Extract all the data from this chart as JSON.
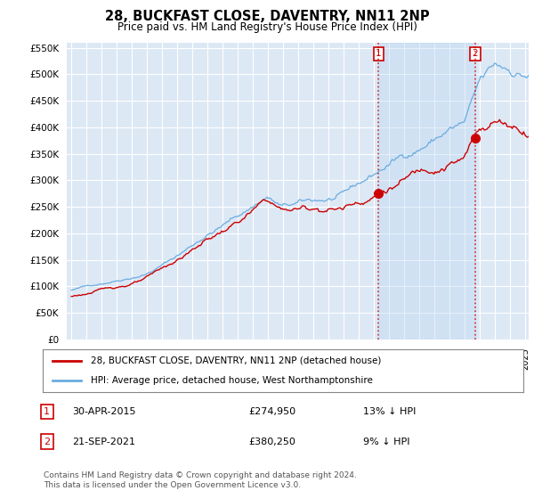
{
  "title": "28, BUCKFAST CLOSE, DAVENTRY, NN11 2NP",
  "subtitle": "Price paid vs. HM Land Registry's House Price Index (HPI)",
  "ylim": [
    0,
    560000
  ],
  "yticks": [
    0,
    50000,
    100000,
    150000,
    200000,
    250000,
    300000,
    350000,
    400000,
    450000,
    500000,
    550000
  ],
  "background_color": "#ffffff",
  "plot_bg_color": "#dde8f5",
  "grid_color": "#ffffff",
  "hpi_color": "#6aace0",
  "price_color": "#cc0000",
  "legend_entry1": "28, BUCKFAST CLOSE, DAVENTRY, NN11 2NP (detached house)",
  "legend_entry2": "HPI: Average price, detached house, West Northamptonshire",
  "table_row1": [
    "1",
    "30-APR-2015",
    "£274,950",
    "13% ↓ HPI"
  ],
  "table_row2": [
    "2",
    "21-SEP-2021",
    "£380,250",
    "9% ↓ HPI"
  ],
  "footer": "Contains HM Land Registry data © Crown copyright and database right 2024.\nThis data is licensed under the Open Government Licence v3.0.",
  "x_start_year": 1995.0,
  "x_end_year": 2025.25,
  "marker1_year": 2015.33,
  "marker2_year": 2021.72,
  "marker1_price": 274950,
  "marker2_price": 380250,
  "marker1_hpi": 316000,
  "marker2_hpi": 420000,
  "shade_color": "#ddeeff"
}
